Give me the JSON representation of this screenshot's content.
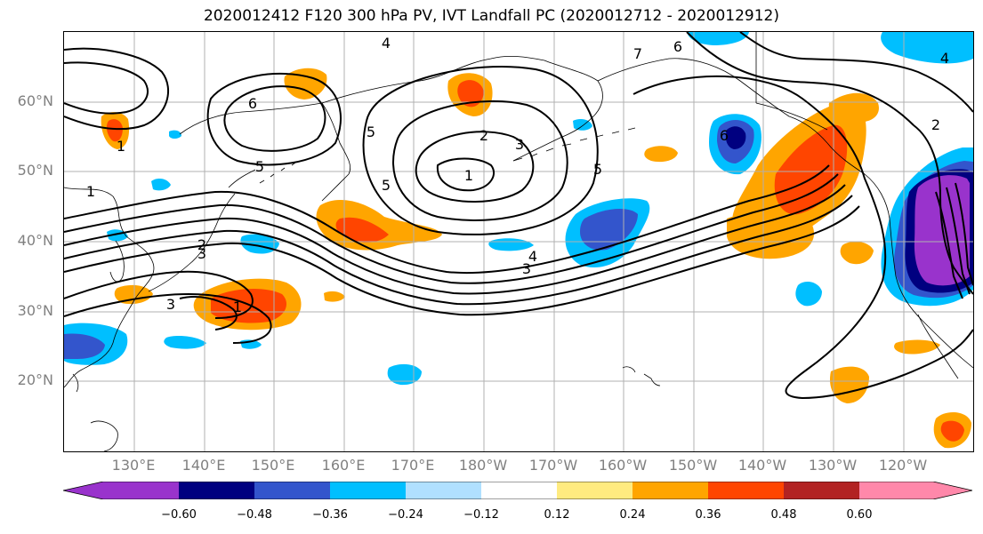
{
  "title": "2020012412 F120 300 hPa PV, IVT Landfall PC (2020012712 - 2020012912)",
  "lat_labels": [
    "60°N",
    "50°N",
    "40°N",
    "30°N",
    "20°N"
  ],
  "lon_labels": [
    "130°E",
    "140°E",
    "150°E",
    "160°E",
    "170°E",
    "180°W",
    "170°W",
    "160°W",
    "150°W",
    "140°W",
    "130°W",
    "120°W"
  ],
  "colorbar": {
    "colors": [
      "#9933cc",
      "#000080",
      "#3355cc",
      "#00bfff",
      "#b0e0ff",
      "#ffffff",
      "#ffeb80",
      "#ffa500",
      "#ff4500",
      "#b22222",
      "#ff88aa"
    ],
    "ticks": [
      "−0.60",
      "−0.48",
      "−0.36",
      "−0.24",
      "−0.12",
      "0.12",
      "0.24",
      "0.36",
      "0.48",
      "0.60"
    ]
  },
  "contour_labels": [
    "4",
    "6",
    "7",
    "6",
    "5",
    "5",
    "2",
    "3",
    "1",
    "5",
    "5",
    "6",
    "2",
    "1",
    "1",
    "2",
    "3",
    "4",
    "3",
    "1",
    "4",
    "3"
  ]
}
